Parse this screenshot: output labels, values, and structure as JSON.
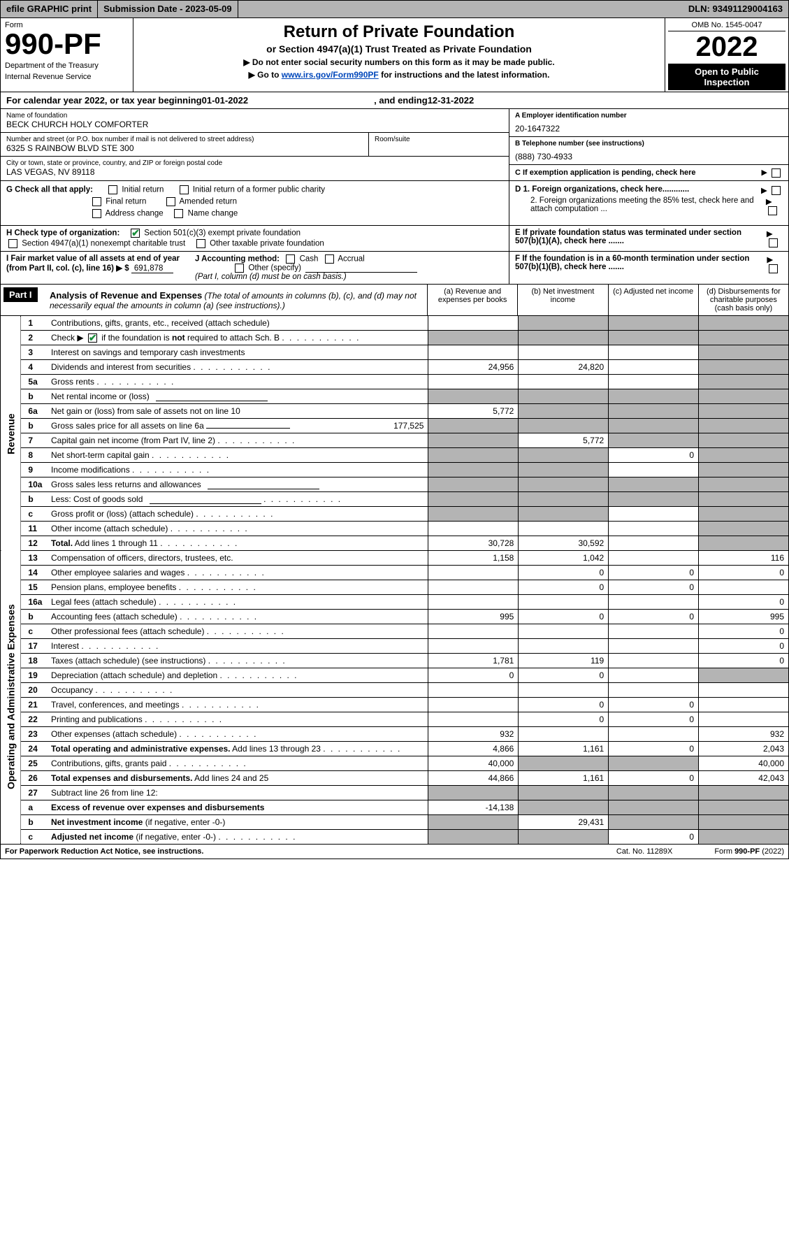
{
  "topbar": {
    "efile": "efile GRAPHIC print",
    "submission_label": "Submission Date - ",
    "submission_date": "2023-05-09",
    "dln_label": "DLN: ",
    "dln": "93491129004163"
  },
  "header": {
    "form_label": "Form",
    "form_number": "990-PF",
    "dept1": "Department of the Treasury",
    "dept2": "Internal Revenue Service",
    "title": "Return of Private Foundation",
    "subtitle": "or Section 4947(a)(1) Trust Treated as Private Foundation",
    "note1": "▶ Do not enter social security numbers on this form as it may be made public.",
    "note2_pre": "▶ Go to ",
    "note2_link": "www.irs.gov/Form990PF",
    "note2_post": " for instructions and the latest information.",
    "omb": "OMB No. 1545-0047",
    "year": "2022",
    "inspect1": "Open to Public",
    "inspect2": "Inspection"
  },
  "calendar": {
    "prefix": "For calendar year 2022, or tax year beginning ",
    "begin": "01-01-2022",
    "mid": ", and ending ",
    "end": "12-31-2022"
  },
  "id": {
    "name_lbl": "Name of foundation",
    "name": "BECK CHURCH HOLY COMFORTER",
    "street_lbl": "Number and street (or P.O. box number if mail is not delivered to street address)",
    "street": "6325 S RAINBOW BLVD STE 300",
    "room_lbl": "Room/suite",
    "city_lbl": "City or town, state or province, country, and ZIP or foreign postal code",
    "city": "LAS VEGAS, NV  89118",
    "a_lbl": "A Employer identification number",
    "a_val": "20-1647322",
    "b_lbl": "B Telephone number (see instructions)",
    "b_val": "(888) 730-4933",
    "c_lbl": "C If exemption application is pending, check here"
  },
  "checks": {
    "g_lbl": "G Check all that apply:",
    "g1": "Initial return",
    "g2": "Initial return of a former public charity",
    "g3": "Final return",
    "g4": "Amended return",
    "g5": "Address change",
    "g6": "Name change",
    "h_lbl": "H Check type of organization:",
    "h1": "Section 501(c)(3) exempt private foundation",
    "h2": "Section 4947(a)(1) nonexempt charitable trust",
    "h3": "Other taxable private foundation",
    "i_lbl": "I Fair market value of all assets at end of year (from Part II, col. (c), line 16) ▶ $",
    "i_val": "691,878",
    "j_lbl": "J Accounting method:",
    "j1": "Cash",
    "j2": "Accrual",
    "j3": "Other (specify)",
    "j_note": "(Part I, column (d) must be on cash basis.)",
    "d1": "D 1. Foreign organizations, check here............",
    "d2": "2. Foreign organizations meeting the 85% test, check here and attach computation ...",
    "e": "E  If private foundation status was terminated under section 507(b)(1)(A), check here .......",
    "f": "F  If the foundation is in a 60-month termination under section 507(b)(1)(B), check here .......",
    "colors": {
      "check_green": "#1a8f3c",
      "shade": "#b4b4b4",
      "link": "#0047bb"
    }
  },
  "part1": {
    "label": "Part I",
    "title": "Analysis of Revenue and Expenses",
    "title_note": " (The total of amounts in columns (b), (c), and (d) may not necessarily equal the amounts in column (a) (see instructions).)",
    "col_a": "(a)  Revenue and expenses per books",
    "col_b": "(b)  Net investment income",
    "col_c": "(c)  Adjusted net income",
    "col_d": "(d)  Disbursements for charitable purposes (cash basis only)"
  },
  "side": {
    "revenue": "Revenue",
    "expenses": "Operating and Administrative Expenses"
  },
  "rows": [
    {
      "n": "1",
      "t": "Contributions, gifts, grants, etc., received (attach schedule)",
      "a": "",
      "b": "s",
      "c": "s",
      "d": "s"
    },
    {
      "n": "2",
      "t": "Check ▶ [x] if the foundation is <b>not</b> required to attach Sch. B",
      "a": "s",
      "b": "s",
      "c": "s",
      "d": "s",
      "dots": true
    },
    {
      "n": "3",
      "t": "Interest on savings and temporary cash investments",
      "a": "",
      "b": "",
      "c": "",
      "d": "s"
    },
    {
      "n": "4",
      "t": "Dividends and interest from securities",
      "a": "24,956",
      "b": "24,820",
      "c": "",
      "d": "s",
      "dots": true
    },
    {
      "n": "5a",
      "t": "Gross rents",
      "a": "",
      "b": "",
      "c": "",
      "d": "s",
      "dots": true
    },
    {
      "n": "b",
      "t": "Net rental income or (loss)",
      "a": "s",
      "b": "s",
      "c": "s",
      "d": "s",
      "line": true
    },
    {
      "n": "6a",
      "t": "Net gain or (loss) from sale of assets not on line 10",
      "a": "5,772",
      "b": "s",
      "c": "s",
      "d": "s"
    },
    {
      "n": "b",
      "t": "Gross sales price for all assets on line 6a",
      "a": "s",
      "b": "s",
      "c": "s",
      "d": "s",
      "inline_val": "177,525",
      "line": true
    },
    {
      "n": "7",
      "t": "Capital gain net income (from Part IV, line 2)",
      "a": "s",
      "b": "5,772",
      "c": "s",
      "d": "s",
      "dots": true
    },
    {
      "n": "8",
      "t": "Net short-term capital gain",
      "a": "s",
      "b": "s",
      "c": "0",
      "d": "s",
      "dots": true
    },
    {
      "n": "9",
      "t": "Income modifications",
      "a": "s",
      "b": "s",
      "c": "",
      "d": "s",
      "dots": true
    },
    {
      "n": "10a",
      "t": "Gross sales less returns and allowances",
      "a": "s",
      "b": "s",
      "c": "s",
      "d": "s",
      "line": true
    },
    {
      "n": "b",
      "t": "Less: Cost of goods sold",
      "a": "s",
      "b": "s",
      "c": "s",
      "d": "s",
      "dots": true,
      "line": true
    },
    {
      "n": "c",
      "t": "Gross profit or (loss) (attach schedule)",
      "a": "s",
      "b": "s",
      "c": "",
      "d": "s",
      "dots": true
    },
    {
      "n": "11",
      "t": "Other income (attach schedule)",
      "a": "",
      "b": "",
      "c": "",
      "d": "s",
      "dots": true
    },
    {
      "n": "12",
      "t": "<b>Total.</b> Add lines 1 through 11",
      "a": "30,728",
      "b": "30,592",
      "c": "",
      "d": "s",
      "dots": true
    }
  ],
  "rows2": [
    {
      "n": "13",
      "t": "Compensation of officers, directors, trustees, etc.",
      "a": "1,158",
      "b": "1,042",
      "c": "",
      "d": "116"
    },
    {
      "n": "14",
      "t": "Other employee salaries and wages",
      "a": "",
      "b": "0",
      "c": "0",
      "d": "0",
      "dots": true
    },
    {
      "n": "15",
      "t": "Pension plans, employee benefits",
      "a": "",
      "b": "0",
      "c": "0",
      "d": "",
      "dots": true
    },
    {
      "n": "16a",
      "t": "Legal fees (attach schedule)",
      "a": "",
      "b": "",
      "c": "",
      "d": "0",
      "dots": true
    },
    {
      "n": "b",
      "t": "Accounting fees (attach schedule)",
      "a": "995",
      "b": "0",
      "c": "0",
      "d": "995",
      "dots": true
    },
    {
      "n": "c",
      "t": "Other professional fees (attach schedule)",
      "a": "",
      "b": "",
      "c": "",
      "d": "0",
      "dots": true
    },
    {
      "n": "17",
      "t": "Interest",
      "a": "",
      "b": "",
      "c": "",
      "d": "0",
      "dots": true
    },
    {
      "n": "18",
      "t": "Taxes (attach schedule) (see instructions)",
      "a": "1,781",
      "b": "119",
      "c": "",
      "d": "0",
      "dots": true
    },
    {
      "n": "19",
      "t": "Depreciation (attach schedule) and depletion",
      "a": "0",
      "b": "0",
      "c": "",
      "d": "s",
      "dots": true
    },
    {
      "n": "20",
      "t": "Occupancy",
      "a": "",
      "b": "",
      "c": "",
      "d": "",
      "dots": true
    },
    {
      "n": "21",
      "t": "Travel, conferences, and meetings",
      "a": "",
      "b": "0",
      "c": "0",
      "d": "",
      "dots": true
    },
    {
      "n": "22",
      "t": "Printing and publications",
      "a": "",
      "b": "0",
      "c": "0",
      "d": "",
      "dots": true
    },
    {
      "n": "23",
      "t": "Other expenses (attach schedule)",
      "a": "932",
      "b": "",
      "c": "",
      "d": "932",
      "dots": true
    },
    {
      "n": "24",
      "t": "<b>Total operating and administrative expenses.</b> Add lines 13 through 23",
      "a": "4,866",
      "b": "1,161",
      "c": "0",
      "d": "2,043",
      "dots": true
    },
    {
      "n": "25",
      "t": "Contributions, gifts, grants paid",
      "a": "40,000",
      "b": "s",
      "c": "s",
      "d": "40,000",
      "dots": true
    },
    {
      "n": "26",
      "t": "<b>Total expenses and disbursements.</b> Add lines 24 and 25",
      "a": "44,866",
      "b": "1,161",
      "c": "0",
      "d": "42,043"
    },
    {
      "n": "27",
      "t": "Subtract line 26 from line 12:",
      "a": "s",
      "b": "s",
      "c": "s",
      "d": "s"
    },
    {
      "n": "a",
      "t": "<b>Excess of revenue over expenses and disbursements</b>",
      "a": "-14,138",
      "b": "s",
      "c": "s",
      "d": "s"
    },
    {
      "n": "b",
      "t": "<b>Net investment income</b> (if negative, enter -0-)",
      "a": "s",
      "b": "29,431",
      "c": "s",
      "d": "s"
    },
    {
      "n": "c",
      "t": "<b>Adjusted net income</b> (if negative, enter -0-)",
      "a": "s",
      "b": "s",
      "c": "0",
      "d": "s",
      "dots": true
    }
  ],
  "footer": {
    "left": "For Paperwork Reduction Act Notice, see instructions.",
    "mid": "Cat. No. 11289X",
    "right": "Form 990-PF (2022)"
  }
}
